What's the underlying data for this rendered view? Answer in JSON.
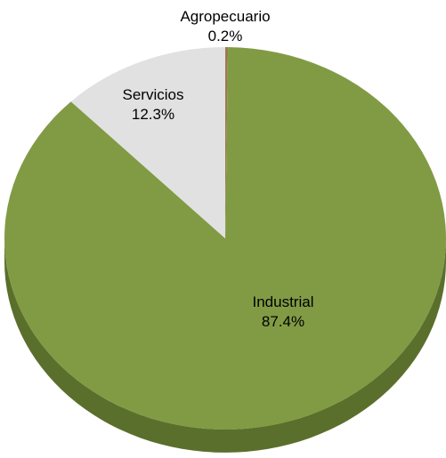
{
  "chart_data": {
    "type": "pie",
    "title": "",
    "slices": [
      {
        "label": "Agropecuario",
        "value": 0.2,
        "value_label": "0.2%",
        "color": "#9b7b52"
      },
      {
        "label": "Industrial",
        "value": 87.4,
        "value_label": "87.4%",
        "color": "#819b44"
      },
      {
        "label": "Servicios",
        "value": 12.3,
        "value_label": "12.3%",
        "color": "#e1e1e1"
      }
    ],
    "start": "12 o'clock",
    "direction": "clockwise",
    "style": "3d",
    "side_color": "#5b6f2c",
    "labels_shown": true,
    "legend": "none"
  }
}
